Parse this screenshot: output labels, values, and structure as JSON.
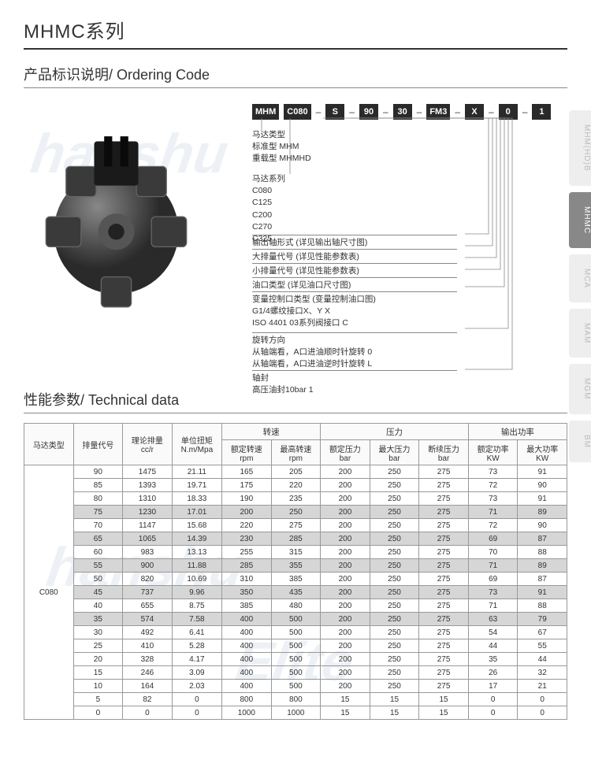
{
  "header": {
    "title": "MHMC系列"
  },
  "ordering": {
    "title": "产品标识说明/ Ordering Code",
    "boxes": [
      "MHM",
      "C080",
      "S",
      "90",
      "30",
      "FM3",
      "X",
      "0",
      "1"
    ],
    "legend": {
      "l1_title": "马达类型",
      "l1_a": "标准型   MHM",
      "l1_b": "重载型   MHMHD",
      "l2_title": "马达系列",
      "l2_a": "C080",
      "l2_b": "C125",
      "l2_c": "C200",
      "l2_d": "C270",
      "l2_e": "C325",
      "l3": "输出轴形式 (详见输出轴尺寸图)",
      "l4": "大排量代号 (详见性能参数表)",
      "l5": "小排量代号 (详见性能参数表)",
      "l6": "油口类型 (详见油口尺寸图)",
      "l7_title": "变量控制口类型 (变量控制油口图)",
      "l7_a": "G1/4螺纹接口X、Y           X",
      "l7_b": "ISO 4401 03系列阀接口     C",
      "l8_title": "旋转方向",
      "l8_a": "从轴端看，A口进油顺时针旋转   0",
      "l8_b": "从轴端看，A口进油逆时针旋转   L",
      "l9_title": "轴封",
      "l9_a": "高压油封10bar   1"
    }
  },
  "tech": {
    "title": "性能参数/ Technical data",
    "headers": {
      "h1": "马达类型",
      "h2": "排量代号",
      "h3": "理论排量",
      "h3u": "cc/r",
      "h4": "单位扭矩",
      "h4u": "N.m/Mpa",
      "g1": "转速",
      "g1a": "额定转速",
      "g1au": "rpm",
      "g1b": "最高转速",
      "g1bu": "rpm",
      "g2": "压力",
      "g2a": "额定压力",
      "g2au": "bar",
      "g2b": "最大压力",
      "g2bu": "bar",
      "g2c": "断续压力",
      "g2cu": "bar",
      "g3": "输出功率",
      "g3a": "额定功率",
      "g3au": "KW",
      "g3b": "最大功率",
      "g3bu": "KW"
    },
    "model": "C080",
    "rows": [
      {
        "d": "90",
        "cc": "1475",
        "t": "21.11",
        "rs": "165",
        "ms": "205",
        "rp": "200",
        "mp": "250",
        "ip": "275",
        "rk": "73",
        "mk": "91"
      },
      {
        "d": "85",
        "cc": "1393",
        "t": "19.71",
        "rs": "175",
        "ms": "220",
        "rp": "200",
        "mp": "250",
        "ip": "275",
        "rk": "72",
        "mk": "90"
      },
      {
        "d": "80",
        "cc": "1310",
        "t": "18.33",
        "rs": "190",
        "ms": "235",
        "rp": "200",
        "mp": "250",
        "ip": "275",
        "rk": "73",
        "mk": "91"
      },
      {
        "d": "75",
        "cc": "1230",
        "t": "17.01",
        "rs": "200",
        "ms": "250",
        "rp": "200",
        "mp": "250",
        "ip": "275",
        "rk": "71",
        "mk": "89",
        "hl": true
      },
      {
        "d": "70",
        "cc": "1147",
        "t": "15.68",
        "rs": "220",
        "ms": "275",
        "rp": "200",
        "mp": "250",
        "ip": "275",
        "rk": "72",
        "mk": "90"
      },
      {
        "d": "65",
        "cc": "1065",
        "t": "14.39",
        "rs": "230",
        "ms": "285",
        "rp": "200",
        "mp": "250",
        "ip": "275",
        "rk": "69",
        "mk": "87",
        "hl": true
      },
      {
        "d": "60",
        "cc": "983",
        "t": "13.13",
        "rs": "255",
        "ms": "315",
        "rp": "200",
        "mp": "250",
        "ip": "275",
        "rk": "70",
        "mk": "88"
      },
      {
        "d": "55",
        "cc": "900",
        "t": "11.88",
        "rs": "285",
        "ms": "355",
        "rp": "200",
        "mp": "250",
        "ip": "275",
        "rk": "71",
        "mk": "89",
        "hl": true
      },
      {
        "d": "50",
        "cc": "820",
        "t": "10.69",
        "rs": "310",
        "ms": "385",
        "rp": "200",
        "mp": "250",
        "ip": "275",
        "rk": "69",
        "mk": "87"
      },
      {
        "d": "45",
        "cc": "737",
        "t": "9.96",
        "rs": "350",
        "ms": "435",
        "rp": "200",
        "mp": "250",
        "ip": "275",
        "rk": "73",
        "mk": "91",
        "hl": true
      },
      {
        "d": "40",
        "cc": "655",
        "t": "8.75",
        "rs": "385",
        "ms": "480",
        "rp": "200",
        "mp": "250",
        "ip": "275",
        "rk": "71",
        "mk": "88"
      },
      {
        "d": "35",
        "cc": "574",
        "t": "7.58",
        "rs": "400",
        "ms": "500",
        "rp": "200",
        "mp": "250",
        "ip": "275",
        "rk": "63",
        "mk": "79",
        "hl": true
      },
      {
        "d": "30",
        "cc": "492",
        "t": "6.41",
        "rs": "400",
        "ms": "500",
        "rp": "200",
        "mp": "250",
        "ip": "275",
        "rk": "54",
        "mk": "67"
      },
      {
        "d": "25",
        "cc": "410",
        "t": "5.28",
        "rs": "400",
        "ms": "500",
        "rp": "200",
        "mp": "250",
        "ip": "275",
        "rk": "44",
        "mk": "55"
      },
      {
        "d": "20",
        "cc": "328",
        "t": "4.17",
        "rs": "400",
        "ms": "500",
        "rp": "200",
        "mp": "250",
        "ip": "275",
        "rk": "35",
        "mk": "44"
      },
      {
        "d": "15",
        "cc": "246",
        "t": "3.09",
        "rs": "400",
        "ms": "500",
        "rp": "200",
        "mp": "250",
        "ip": "275",
        "rk": "26",
        "mk": "32"
      },
      {
        "d": "10",
        "cc": "164",
        "t": "2.03",
        "rs": "400",
        "ms": "500",
        "rp": "200",
        "mp": "250",
        "ip": "275",
        "rk": "17",
        "mk": "21"
      },
      {
        "d": "5",
        "cc": "82",
        "t": "0",
        "rs": "800",
        "ms": "800",
        "rp": "15",
        "mp": "15",
        "ip": "15",
        "rk": "0",
        "mk": "0"
      },
      {
        "d": "0",
        "cc": "0",
        "t": "0",
        "rs": "1000",
        "ms": "1000",
        "rp": "15",
        "mp": "15",
        "ip": "15",
        "rk": "0",
        "mk": "0"
      }
    ]
  },
  "tabs": {
    "t1": "MHM(HD)B",
    "t2": "MHMC",
    "t3": "MCA",
    "t4": "MAM",
    "t5": "MGM",
    "t6": "BM"
  }
}
